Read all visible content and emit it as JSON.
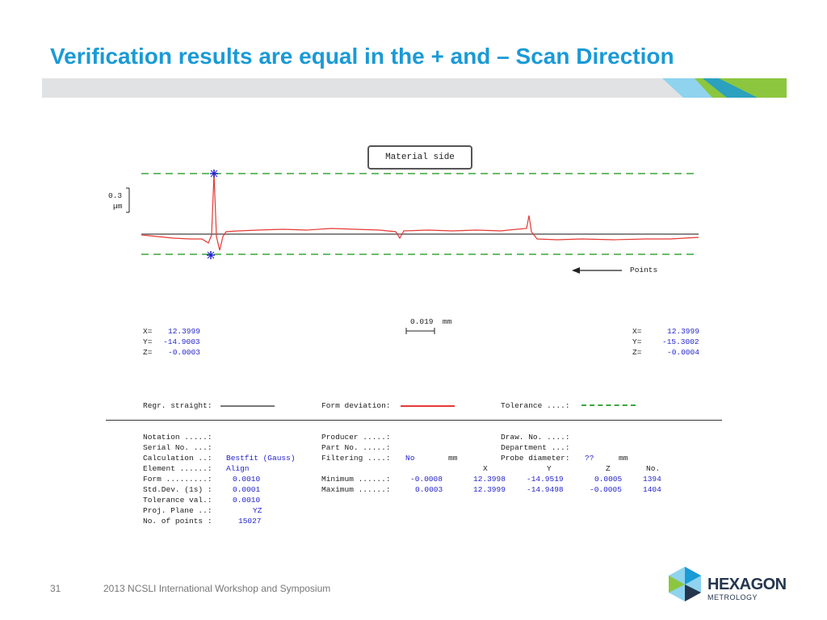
{
  "slide": {
    "title": "Verification results are equal in the + and – Scan Direction",
    "footer_page": "31",
    "footer_text": "2013 NCSLI International Workshop and Symposium",
    "logo_name": "HEXAGON",
    "logo_sub": "METROLOGY",
    "accent_blue": "#1a9ad6",
    "accent_green": "#8cc63f"
  },
  "plot": {
    "material_label": "Material side",
    "scale_value": "0.3",
    "scale_unit": "µm",
    "points_label": "Points",
    "length_scale": "0.019  mm"
  },
  "coords_left": {
    "x_label": "X=",
    "x_val": "12.3999",
    "y_label": "Y=",
    "y_val": "-14.9003",
    "z_label": "Z=",
    "z_val": "-0.0003"
  },
  "coords_right": {
    "x_label": "X=",
    "x_val": "12.3999",
    "y_label": "Y=",
    "y_val": "-15.3002",
    "z_label": "Z=",
    "z_val": "-0.0004"
  },
  "legend": {
    "regr": "Regr. straight:",
    "form": "Form deviation:",
    "tol": "Tolerance ....:"
  },
  "info_left": [
    {
      "label": "Notation .....:",
      "value": ""
    },
    {
      "label": "Serial No. ...:",
      "value": ""
    },
    {
      "label": "Calculation ..:",
      "value": "Bestfit (Gauss)"
    },
    {
      "label": "Element ......:",
      "value": "Align"
    },
    {
      "label": "Form .........:",
      "value": "0.0010"
    },
    {
      "label": "Std.Dev. (1s) :",
      "value": "0.0001"
    },
    {
      "label": "Tolerance val.:",
      "value": "0.0010"
    },
    {
      "label": "Proj. Plane ..:",
      "value": "YZ"
    },
    {
      "label": "No. of points :",
      "value": "15027"
    }
  ],
  "info_mid": [
    {
      "label": "Producer .....:",
      "value": ""
    },
    {
      "label": "Part No. .....:",
      "value": ""
    },
    {
      "label": "Filtering ....:",
      "value": "No",
      "unit": "mm"
    }
  ],
  "info_right": [
    {
      "label": "Draw. No. ....:",
      "value": ""
    },
    {
      "label": "Department ...:",
      "value": ""
    },
    {
      "label": "Probe diameter:",
      "value": "??",
      "unit": "mm"
    }
  ],
  "stats": {
    "headers": [
      "X",
      "Y",
      "Z",
      "No."
    ],
    "rows": [
      {
        "label": "Minimum ......:",
        "dev": "-0.0008",
        "x": "12.3998",
        "y": "-14.9519",
        "z": "0.0005",
        "no": "1394"
      },
      {
        "label": "Maximum ......:",
        "dev": "0.0003",
        "x": "12.3999",
        "y": "-14.9498",
        "z": "-0.0005",
        "no": "1404"
      }
    ]
  }
}
